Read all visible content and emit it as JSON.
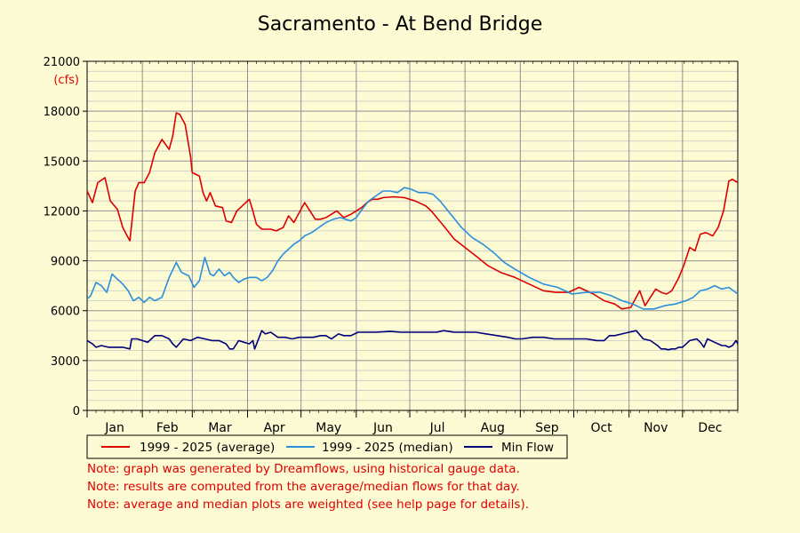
{
  "colors": {
    "background": "#fdfbd3",
    "average": "#dd0000",
    "median": "#2a8fdc",
    "min": "#00007a",
    "unit": "#dd0000",
    "note": "#e00000",
    "grid_major": "#909090",
    "grid_minor": "#c8c8c8"
  },
  "notes": [
    "Note: graph was generated by Dreamflows, using historical gauge data.",
    "Note: results are computed from the average/median flows for that day.",
    "Note: average and median plots are weighted (see help page for details)."
  ],
  "chart_data": {
    "type": "line",
    "title": "Sacramento - At Bend Bridge",
    "ylabel": "(cfs)",
    "xlabel": "",
    "ylim": [
      0,
      21000
    ],
    "yticks": [
      0,
      3000,
      6000,
      9000,
      12000,
      15000,
      18000,
      21000
    ],
    "y_minor_step": 600,
    "grid": true,
    "legend_position": "bottom",
    "x_range": [
      0,
      365
    ],
    "months": [
      "Jan",
      "Feb",
      "Mar",
      "Apr",
      "May",
      "Jun",
      "Jul",
      "Aug",
      "Sep",
      "Oct",
      "Nov",
      "Dec"
    ],
    "month_starts": [
      0,
      31,
      59,
      90,
      120,
      151,
      181,
      212,
      243,
      273,
      304,
      334
    ],
    "series": [
      {
        "name": "1999 - 2025 (average)",
        "color": "#dd0000",
        "x": [
          0,
          3,
          6,
          10,
          13,
          17,
          20,
          24,
          27,
          29,
          32,
          35,
          38,
          42,
          46,
          48,
          50,
          52,
          55,
          58,
          59,
          63,
          65,
          67,
          69,
          72,
          76,
          78,
          81,
          84,
          87,
          91,
          93,
          95,
          98,
          101,
          103,
          106,
          110,
          113,
          116,
          119,
          122,
          125,
          128,
          131,
          134,
          137,
          140,
          144,
          148,
          151,
          154,
          157,
          160,
          163,
          166,
          172,
          178,
          184,
          190,
          193,
          200,
          206,
          212,
          218,
          225,
          232,
          240,
          248,
          256,
          263,
          270,
          276,
          284,
          290,
          293,
          296,
          300,
          305,
          310,
          313,
          316,
          319,
          322,
          325,
          328,
          332,
          335,
          338,
          341,
          344,
          347,
          351,
          354,
          357,
          360,
          362,
          365
        ],
        "y": [
          13200,
          12500,
          13700,
          14000,
          12600,
          12100,
          11000,
          10200,
          13200,
          13700,
          13700,
          14300,
          15500,
          16300,
          15700,
          16500,
          17900,
          17800,
          17200,
          15300,
          14300,
          14100,
          13100,
          12600,
          13100,
          12300,
          12200,
          11400,
          11300,
          12000,
          12300,
          12700,
          12000,
          11200,
          10900,
          10900,
          10900,
          10800,
          11000,
          11700,
          11300,
          11900,
          12500,
          12000,
          11500,
          11500,
          11600,
          11800,
          12000,
          11600,
          11800,
          12000,
          12200,
          12500,
          12700,
          12700,
          12800,
          12850,
          12800,
          12600,
          12300,
          12000,
          11100,
          10300,
          9800,
          9300,
          8700,
          8300,
          8000,
          7600,
          7200,
          7100,
          7100,
          7400,
          7000,
          6600,
          6500,
          6400,
          6100,
          6200,
          7200,
          6300,
          6800,
          7300,
          7100,
          7000,
          7200,
          8000,
          8800,
          9800,
          9600,
          10600,
          10700,
          10500,
          11000,
          12000,
          13800,
          13900,
          13700
        ]
      },
      {
        "name": "1999 - 2025 (median)",
        "color": "#2a8fdc",
        "x": [
          0,
          2,
          5,
          8,
          11,
          14,
          17,
          20,
          23,
          26,
          29,
          32,
          35,
          38,
          42,
          46,
          50,
          53,
          57,
          60,
          63,
          66,
          69,
          71,
          74,
          77,
          80,
          82,
          85,
          88,
          91,
          95,
          98,
          101,
          104,
          107,
          110,
          113,
          116,
          119,
          122,
          126,
          130,
          134,
          138,
          142,
          145,
          148,
          151,
          155,
          158,
          162,
          166,
          170,
          174,
          178,
          182,
          186,
          190,
          194,
          198,
          204,
          210,
          216,
          222,
          228,
          234,
          240,
          248,
          256,
          264,
          272,
          280,
          288,
          294,
          300,
          306,
          312,
          318,
          324,
          330,
          336,
          340,
          344,
          348,
          352,
          356,
          360,
          365
        ],
        "y": [
          6700,
          6900,
          7700,
          7500,
          7100,
          8200,
          7900,
          7600,
          7200,
          6600,
          6800,
          6500,
          6800,
          6600,
          6800,
          8000,
          8900,
          8300,
          8100,
          7400,
          7800,
          9200,
          8200,
          8100,
          8500,
          8100,
          8300,
          8000,
          7700,
          7900,
          8000,
          8000,
          7800,
          8000,
          8400,
          9000,
          9400,
          9700,
          10000,
          10200,
          10500,
          10700,
          11000,
          11300,
          11500,
          11600,
          11500,
          11400,
          11600,
          12200,
          12600,
          12900,
          13200,
          13200,
          13100,
          13400,
          13300,
          13100,
          13100,
          13000,
          12600,
          11800,
          11000,
          10400,
          10000,
          9500,
          8900,
          8500,
          8000,
          7600,
          7400,
          7000,
          7100,
          7100,
          6900,
          6600,
          6400,
          6100,
          6100,
          6300,
          6400,
          6600,
          6800,
          7200,
          7300,
          7500,
          7300,
          7400,
          7000
        ]
      },
      {
        "name": "Min Flow",
        "color": "#00007a",
        "x": [
          0,
          3,
          5,
          8,
          12,
          16,
          20,
          24,
          25,
          28,
          31,
          34,
          38,
          42,
          46,
          48,
          50,
          54,
          58,
          62,
          66,
          70,
          74,
          78,
          80,
          82,
          85,
          88,
          91,
          93,
          94,
          98,
          100,
          103,
          107,
          111,
          115,
          119,
          123,
          127,
          131,
          134,
          137,
          141,
          144,
          148,
          152,
          156,
          162,
          170,
          176,
          182,
          190,
          196,
          200,
          206,
          212,
          218,
          224,
          230,
          236,
          240,
          244,
          250,
          256,
          262,
          268,
          274,
          280,
          286,
          290,
          292,
          293,
          296,
          300,
          304,
          308,
          312,
          316,
          320,
          322,
          324,
          326,
          328,
          330,
          332,
          334,
          338,
          342,
          344,
          346,
          348,
          352,
          356,
          358,
          360,
          362,
          364,
          365
        ],
        "y": [
          4200,
          4000,
          3800,
          3900,
          3800,
          3800,
          3800,
          3700,
          4300,
          4300,
          4200,
          4100,
          4500,
          4500,
          4300,
          4000,
          3800,
          4300,
          4200,
          4400,
          4300,
          4200,
          4200,
          4000,
          3700,
          3700,
          4200,
          4100,
          4000,
          4200,
          3700,
          4800,
          4600,
          4700,
          4400,
          4400,
          4300,
          4400,
          4400,
          4400,
          4500,
          4500,
          4300,
          4600,
          4500,
          4500,
          4700,
          4700,
          4700,
          4750,
          4700,
          4700,
          4700,
          4700,
          4800,
          4700,
          4700,
          4700,
          4600,
          4500,
          4400,
          4300,
          4300,
          4400,
          4400,
          4300,
          4300,
          4300,
          4300,
          4200,
          4200,
          4400,
          4500,
          4500,
          4600,
          4700,
          4800,
          4300,
          4200,
          3900,
          3700,
          3700,
          3650,
          3700,
          3700,
          3800,
          3800,
          4200,
          4300,
          4100,
          3800,
          4300,
          4100,
          3900,
          3900,
          3800,
          3900,
          4200,
          4000
        ]
      }
    ]
  }
}
